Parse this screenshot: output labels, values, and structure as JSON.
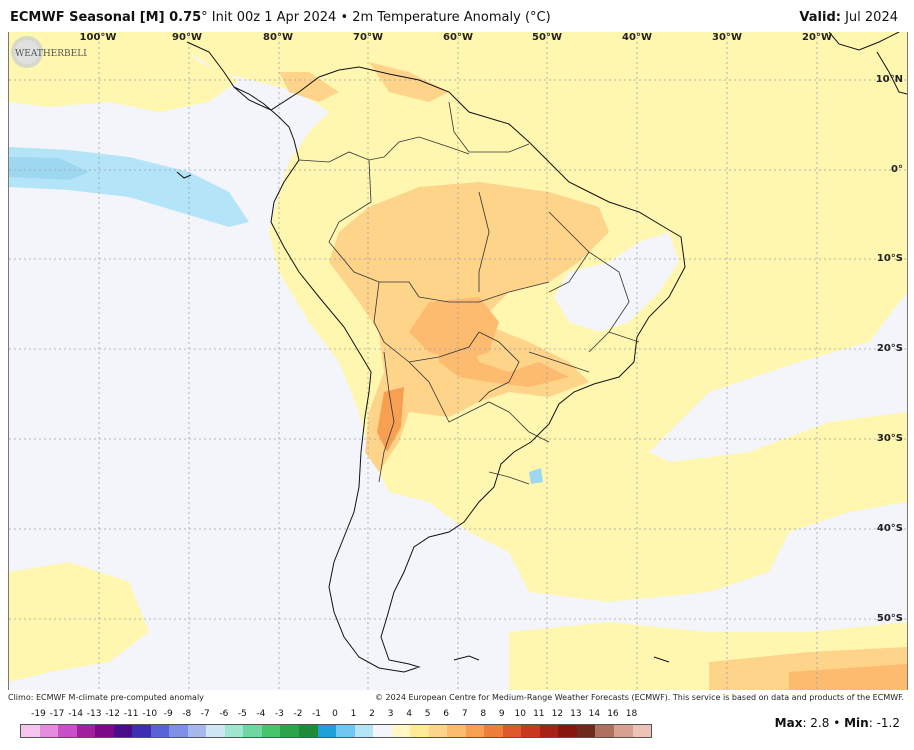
{
  "header": {
    "title_bold": "ECMWF Seasonal [M] 0.75",
    "title_rest": "° Init 00z 1 Apr 2024 • 2m Temperature Anomaly (°C)",
    "valid_label": "Valid:",
    "valid_value": "Jul 2024"
  },
  "map": {
    "lon_labels": [
      "100°W",
      "90°W",
      "80°W",
      "70°W",
      "60°W",
      "50°W",
      "40°W",
      "30°W",
      "20°W"
    ],
    "lat_labels": [
      "10°N",
      "0°",
      "10°S",
      "20°S",
      "30°S",
      "40°S",
      "50°S"
    ],
    "logo_text": "WEATHERBELL"
  },
  "footer": {
    "climo": "Climo: ECMWF M-climate pre-computed anomaly",
    "copyright": "© 2024 European Centre for Medium-Range Weather Forecasts (ECMWF). This service is based on data and products of the ECMWF."
  },
  "colorbar": {
    "labels": [
      "-19",
      "-17",
      "-14",
      "-13",
      "-12",
      "-11",
      "-10",
      "-9",
      "-8",
      "-7",
      "-6",
      "-5",
      "-4",
      "-3",
      "-2",
      "-1",
      "0",
      "1",
      "2",
      "3",
      "4",
      "5",
      "6",
      "7",
      "8",
      "9",
      "10",
      "11",
      "12",
      "13",
      "14",
      "16",
      "18"
    ],
    "colors": [
      "#f7c6f0",
      "#e58be0",
      "#c850c8",
      "#a0209e",
      "#7a0a86",
      "#4b0c8a",
      "#3d2eb2",
      "#5a62d8",
      "#7f8fe6",
      "#a7b8ef",
      "#cfe7f5",
      "#9ee8d2",
      "#6fd8a2",
      "#48c46a",
      "#2ba44a",
      "#1f8a3a",
      "#1da1d8",
      "#6fc6ee",
      "#b3e4f7",
      "#f3f5fb",
      "#fff7c4",
      "#ffeb96",
      "#fed38a",
      "#fdbb70",
      "#f8a052",
      "#ee7f3a",
      "#de5a2c",
      "#c8391f",
      "#a62215",
      "#86160e",
      "#6e2a1a",
      "#b07060",
      "#d7a090",
      "#ecc3b8"
    ]
  },
  "stats": {
    "max_label": "Max",
    "max_value": ": 2.8",
    "sep": " • ",
    "min_label": "Min",
    "min_value": ": -1.2"
  }
}
